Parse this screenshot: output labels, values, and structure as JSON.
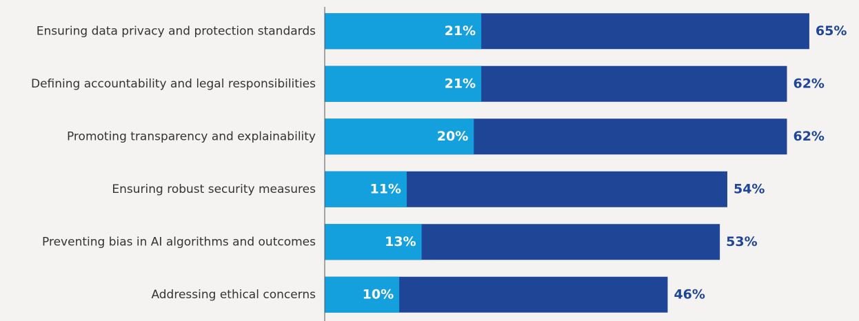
{
  "chart_data": {
    "type": "bar",
    "orientation": "horizontal",
    "stacked": false,
    "categories": [
      "Ensuring data privacy and protection standards",
      "Defining accountability and legal responsibilities",
      "Promoting transparency and explainability",
      "Ensuring robust security measures",
      "Preventing bias in AI algorithms and outcomes",
      "Addressing ethical concerns"
    ],
    "series": [
      {
        "color": "#1e4596",
        "values": [
          65,
          62,
          62,
          54,
          53,
          46
        ],
        "value_labels": [
          "65%",
          "62%",
          "62%",
          "54%",
          "53%",
          "46%"
        ]
      },
      {
        "color": "#13a0dc",
        "values": [
          21,
          21,
          20,
          11,
          13,
          10
        ],
        "value_labels": [
          "21%",
          "21%",
          "20%",
          "11%",
          "13%",
          "10%"
        ]
      }
    ],
    "xlim": [
      0,
      70
    ]
  }
}
